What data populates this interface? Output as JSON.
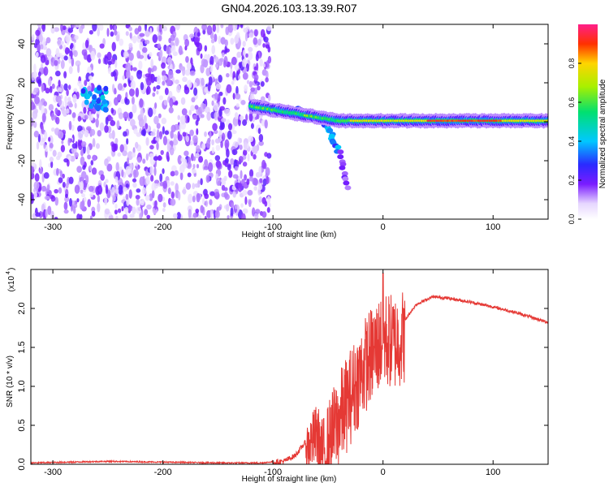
{
  "page_title": "GN04.2026.103.13.39.R07",
  "chart_data": [
    {
      "type": "heatmap",
      "title": "GN04.2026.103.13.39.R07",
      "xlabel": "Height of straight line (km)",
      "ylabel": "Frequency (Hz)",
      "xlim": [
        -320,
        150
      ],
      "ylim": [
        -50,
        50
      ],
      "x_ticks": [
        -300,
        -200,
        -100,
        0,
        100
      ],
      "y_ticks": [
        -40,
        -20,
        0,
        20,
        40
      ],
      "colorbar": {
        "label": "Normalized spectral amplitude",
        "range": [
          0,
          1
        ],
        "ticks": [
          0.0,
          0.2,
          0.4,
          0.6,
          0.8
        ]
      },
      "features": {
        "noise_region_x": [
          -320,
          -103
        ],
        "noise_gap_x": [
          -262,
          -252
        ],
        "blob": {
          "x": -262,
          "y": 12
        },
        "signal_band": {
          "x_start": -120,
          "x_end": 150,
          "center_hz": 0.5,
          "tilt_start_x": -120,
          "tilt_start_hz": 8
        },
        "dispersive_tail": [
          [
            -78,
            7
          ],
          [
            -60,
            2
          ],
          [
            -48,
            -5
          ],
          [
            -40,
            -16
          ],
          [
            -30,
            -36
          ]
        ]
      }
    },
    {
      "type": "line",
      "xlabel": "Height of straight line (km)",
      "ylabel": "SNR (10 * v/v)",
      "y_scale_label": "(x10",
      "y_scale_exponent": "4",
      "xlim": [
        -320,
        150
      ],
      "ylim": [
        0,
        2.5
      ],
      "x_ticks": [
        -300,
        -200,
        -100,
        0,
        100
      ],
      "y_ticks": [
        0.0,
        0.5,
        1.0,
        1.5,
        2.0
      ],
      "series": [
        {
          "name": "SNR",
          "color": "#e53935",
          "anchors": [
            [
              -320,
              0.02
            ],
            [
              -250,
              0.04
            ],
            [
              -200,
              0.03
            ],
            [
              -150,
              0.02
            ],
            [
              -110,
              0.02
            ],
            [
              -90,
              0.05
            ],
            [
              -80,
              0.12
            ],
            [
              -70,
              0.3
            ],
            [
              -60,
              0.5
            ],
            [
              -55,
              0.25
            ],
            [
              -45,
              0.6
            ],
            [
              -35,
              0.9
            ],
            [
              -25,
              1.2
            ],
            [
              -15,
              1.5
            ],
            [
              -5,
              1.7
            ],
            [
              0,
              1.8
            ],
            [
              10,
              1.75
            ],
            [
              20,
              1.85
            ],
            [
              30,
              2.05
            ],
            [
              45,
              2.15
            ],
            [
              60,
              2.13
            ],
            [
              80,
              2.08
            ],
            [
              100,
              2.02
            ],
            [
              120,
              1.95
            ],
            [
              150,
              1.82
            ]
          ],
          "peak": [
            0,
            2.45
          ]
        }
      ]
    }
  ]
}
